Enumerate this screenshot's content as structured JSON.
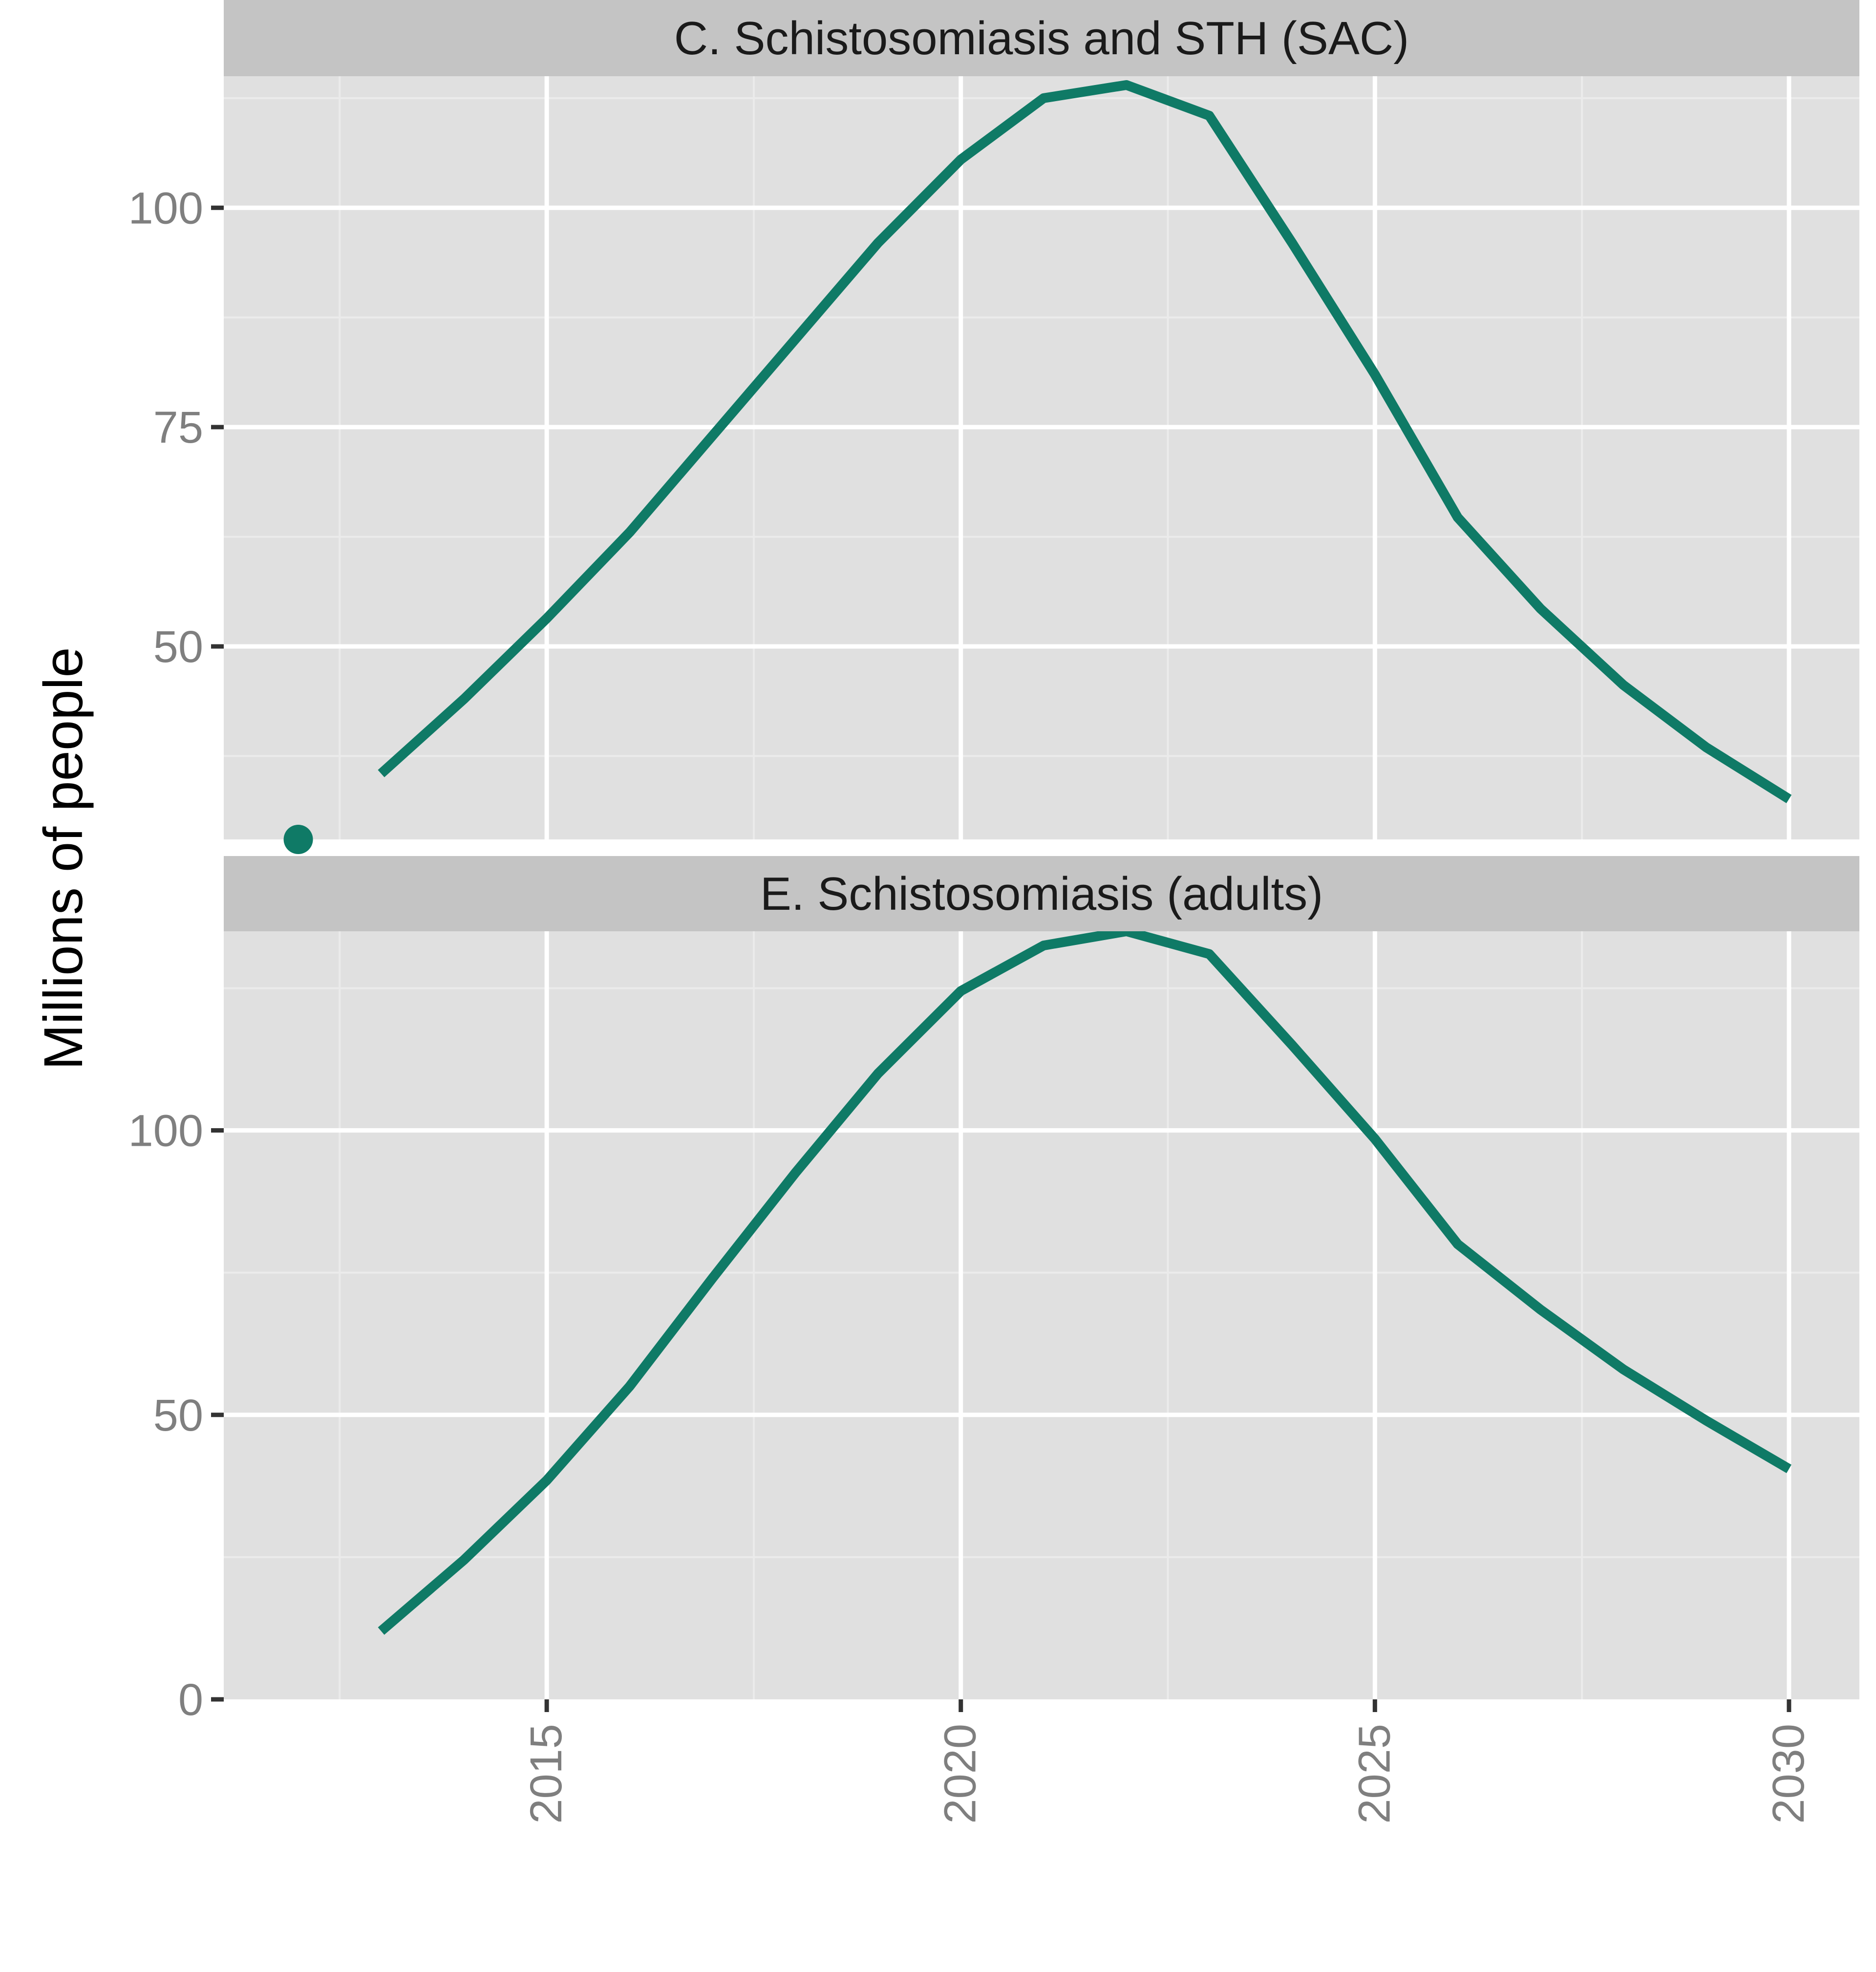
{
  "chart_data": {
    "type": "line",
    "ylabel": "Millions of people",
    "xlabel": "",
    "x_ticks": [
      2015,
      2020,
      2025,
      2030
    ],
    "xlim": [
      2011.1,
      2030.85
    ],
    "colors": {
      "line": "#0f7a66",
      "panel_bg": "#e0e0e0",
      "strip_bg": "#c4c4c4",
      "grid_major": "#ffffff",
      "grid_minor": "#ebebeb"
    },
    "panels": [
      {
        "title": "C. Schistosomiasis and STH (SAC)",
        "ylim": [
          28,
          115
        ],
        "y_ticks": [
          50,
          75,
          100
        ],
        "series": [
          {
            "x": [
              2013,
              2014,
              2015,
              2016,
              2017,
              2018,
              2019,
              2020,
              2021,
              2022,
              2023,
              2024,
              2025,
              2026,
              2027,
              2028,
              2029,
              2030
            ],
            "values": [
              35.5,
              44.0,
              53.2,
              63.0,
              74.0,
              85.0,
              96.0,
              105.5,
              112.5,
              114.0,
              110.5,
              96.0,
              81.0,
              64.7,
              54.3,
              45.6,
              38.5,
              32.6
            ]
          }
        ],
        "points": [
          {
            "x": 2012,
            "y": 28.0
          }
        ]
      },
      {
        "title": "E. Schistosomiasis (adults)",
        "ylim": [
          0,
          135
        ],
        "y_ticks": [
          0,
          50,
          100
        ],
        "series": [
          {
            "x": [
              2013,
              2014,
              2015,
              2016,
              2017,
              2018,
              2019,
              2020,
              2021,
              2022,
              2023,
              2024,
              2025,
              2026,
              2027,
              2028,
              2029,
              2030
            ],
            "values": [
              12.0,
              24.5,
              38.5,
              55.0,
              74.0,
              92.5,
              110.0,
              124.5,
              132.5,
              135.0,
              131.0,
              115.0,
              98.5,
              80.0,
              68.5,
              58.0,
              49.0,
              40.5
            ]
          }
        ]
      }
    ]
  }
}
